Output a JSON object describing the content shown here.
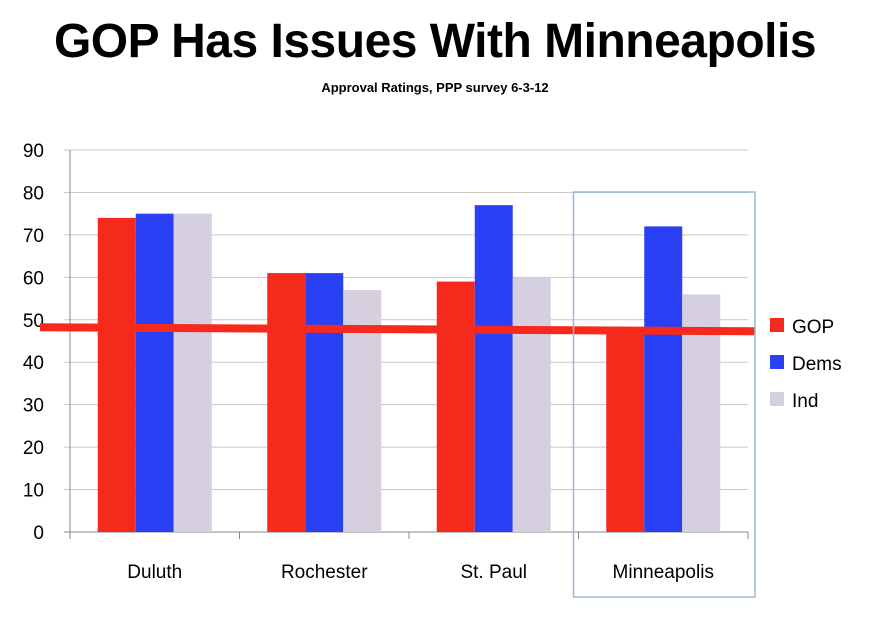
{
  "chart_data": {
    "type": "bar",
    "title": "GOP Has Issues With Minneapolis",
    "subtitle": "Approval Ratings, PPP survey 6-3-12",
    "categories": [
      "Duluth",
      "Rochester",
      "St. Paul",
      "Minneapolis"
    ],
    "series": [
      {
        "name": "GOP",
        "color": "#f52a1c",
        "values": [
          74,
          61,
          59,
          48
        ]
      },
      {
        "name": "Dems",
        "color": "#2a40f5",
        "values": [
          75,
          61,
          77,
          72
        ]
      },
      {
        "name": "Ind",
        "color": "#d5cfe0",
        "values": [
          75,
          57,
          60,
          56
        ]
      }
    ],
    "ylim": [
      0,
      90
    ],
    "yticks": [
      "0",
      "10",
      "20",
      "30",
      "40",
      "50",
      "60",
      "70",
      "80",
      "90"
    ],
    "grid": true,
    "legend": "right",
    "reference_line": {
      "value": 48,
      "color": "#f52a1c"
    },
    "highlight_category": "Minneapolis",
    "highlight_color": "#9ab8d6"
  }
}
